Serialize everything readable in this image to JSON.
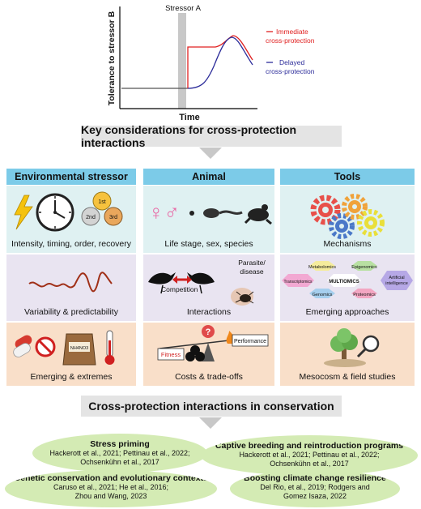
{
  "chart": {
    "ylabel": "Tolerance to stressor B",
    "xlabel": "Time",
    "stressor_label": "Stressor A",
    "legend": {
      "immediate": "Immediate\ncross-protection",
      "delayed": "Delayed\ncross-protection"
    },
    "colors": {
      "immediate": "#e02020",
      "delayed": "#2c2c9a",
      "baseline": "#555555",
      "stressor_band": "#c8c8c8"
    }
  },
  "banner_top": "Key considerations for cross-protection interactions",
  "columns": [
    {
      "title": "Environmental stressor"
    },
    {
      "title": "Animal"
    },
    {
      "title": "Tools"
    }
  ],
  "rows": {
    "row1": {
      "env": "Intensity, timing, order, recovery",
      "animal": "Life stage, sex, species",
      "tools": "Mechanisms"
    },
    "row2": {
      "env": "Variability & predictability",
      "animal": "Interactions",
      "tools": "Emerging approaches"
    },
    "row3": {
      "env": "Emerging & extremes",
      "animal": "Costs & trade-offs",
      "tools": "Mesocosm & field studies"
    }
  },
  "icon_text": {
    "order_1": "1st",
    "order_2": "2nd",
    "order_3": "3rd",
    "sex_symbols": "♀♂",
    "competition": "Competition",
    "parasite": "Parasite/\ndisease",
    "fitness": "Fitness",
    "performance": "Performance",
    "nh": "NH4NO3",
    "omics": {
      "metabolomics": "Metabolomics",
      "epigenomics": "Epigenomics",
      "transcriptomics": "Transcriptomics",
      "multiomics": "MULTIOMICS",
      "ai": "Artificial\nintelligence",
      "genomics": "Genomics",
      "proteomics": "Proteomics"
    }
  },
  "banner_bottom": "Cross-protection interactions in conservation",
  "conservation": [
    {
      "title": "Stress priming",
      "refs": "Hackerott et al., 2021; Pettinau et al., 2022;\nOchsenkühn et al., 2017"
    },
    {
      "title": "Captive breeding and reintroduction programs",
      "refs": "Hackerott et al., 2021; Pettinau et al., 2022;\nOchsenkühn et al., 2017"
    },
    {
      "title": "Genetic conservation and evolutionary contexts",
      "refs": "Caruso et al., 2021; He et al., 2016;\nZhou and Wang, 2023"
    },
    {
      "title": "Boosting climate change resilience",
      "refs": "Del Rio, et al., 2019; Rodgers and\nGomez Isaza, 2022"
    }
  ],
  "colors": {
    "header_blue": "#7ccbe8",
    "row_teal": "#dff1f2",
    "row_purple": "#e9e4f1",
    "row_peach": "#f9dfc9",
    "oval_green": "#d4ebb4",
    "banner_grey": "#e4e4e4"
  }
}
